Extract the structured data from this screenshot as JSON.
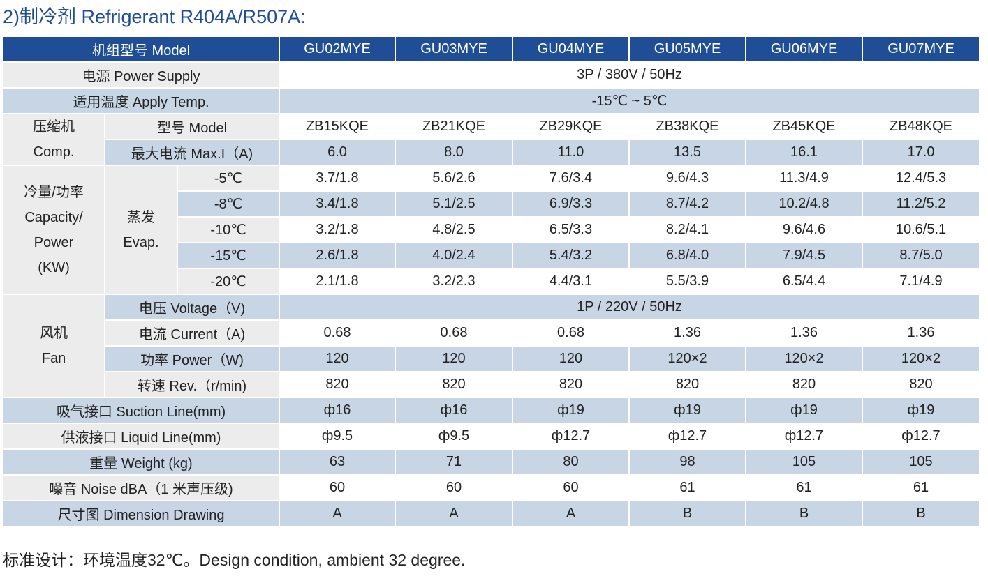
{
  "title": "2)制冷剂 Refrigerant R404A/R507A:",
  "header": {
    "model_label": "机组型号 Model",
    "models": [
      "GU02MYE",
      "GU03MYE",
      "GU04MYE",
      "GU05MYE",
      "GU06MYE",
      "GU07MYE"
    ]
  },
  "power_supply": {
    "label": "电源 Power Supply",
    "value": "3P / 380V / 50Hz"
  },
  "apply_temp": {
    "label": "适用温度 Apply Temp.",
    "value": "-15℃ ~ 5℃"
  },
  "compressor": {
    "group_label": [
      "压缩机",
      "Comp."
    ],
    "model_row": {
      "label": "型号 Model",
      "values": [
        "ZB15KQE",
        "ZB21KQE",
        "ZB29KQE",
        "ZB38KQE",
        "ZB45KQE",
        "ZB48KQE"
      ]
    },
    "max_current_row": {
      "label": "最大电流 Max.I（A)",
      "values": [
        "6.0",
        "8.0",
        "11.0",
        "13.5",
        "16.1",
        "17.0"
      ]
    }
  },
  "capacity": {
    "group_label": [
      "冷量/功率",
      "Capacity/",
      "Power",
      "(KW)"
    ],
    "evap_label": [
      "蒸发",
      "Evap."
    ],
    "rows": [
      {
        "temp": "-5℃",
        "values": [
          "3.7/1.8",
          "5.6/2.6",
          "7.6/3.4",
          "9.6/4.3",
          "11.3/4.9",
          "12.4/5.3"
        ]
      },
      {
        "temp": "-8℃",
        "values": [
          "3.4/1.8",
          "5.1/2.5",
          "6.9/3.3",
          "8.7/4.2",
          "10.2/4.8",
          "11.2/5.2"
        ]
      },
      {
        "temp": "-10℃",
        "values": [
          "3.2/1.8",
          "4.8/2.5",
          "6.5/3.3",
          "8.2/4.1",
          "9.6/4.6",
          "10.6/5.1"
        ]
      },
      {
        "temp": "-15℃",
        "values": [
          "2.6/1.8",
          "4.0/2.4",
          "5.4/3.2",
          "6.8/4.0",
          "7.9/4.5",
          "8.7/5.0"
        ]
      },
      {
        "temp": "-20℃",
        "values": [
          "2.1/1.8",
          "3.2/2.3",
          "4.4/3.1",
          "5.5/3.9",
          "6.5/4.4",
          "7.1/4.9"
        ]
      }
    ]
  },
  "fan": {
    "group_label": [
      "风机",
      "Fan"
    ],
    "voltage": {
      "label": "电压 Voltage（V)",
      "value": "1P / 220V / 50Hz"
    },
    "current": {
      "label": "电流 Current（A)",
      "values": [
        "0.68",
        "0.68",
        "0.68",
        "1.36",
        "1.36",
        "1.36"
      ]
    },
    "power": {
      "label": "功率 Power（W)",
      "values": [
        "120",
        "120",
        "120",
        "120×2",
        "120×2",
        "120×2"
      ]
    },
    "rev": {
      "label": "转速 Rev.（r/min)",
      "values": [
        "820",
        "820",
        "820",
        "820",
        "820",
        "820"
      ]
    }
  },
  "suction": {
    "label": "吸气接口 Suction Line(mm)",
    "values": [
      "ф16",
      "ф16",
      "ф19",
      "ф19",
      "ф19",
      "ф19"
    ]
  },
  "liquid": {
    "label": "供液接口 Liquid Line(mm)",
    "values": [
      "ф9.5",
      "ф9.5",
      "ф12.7",
      "ф12.7",
      "ф12.7",
      "ф12.7"
    ]
  },
  "weight": {
    "label": "重量 Weight (kg)",
    "values": [
      "63",
      "71",
      "80",
      "98",
      "105",
      "105"
    ]
  },
  "noise": {
    "label": "噪音 Noise dBA（1 米声压级)",
    "values": [
      "60",
      "60",
      "60",
      "61",
      "61",
      "61"
    ]
  },
  "dimension": {
    "label": "尺寸图 Dimension Drawing",
    "values": [
      "A",
      "A",
      "A",
      "B",
      "B",
      "B"
    ]
  },
  "note": "标准设计：环境温度32℃。Design condition, ambient 32 degree.",
  "colors": {
    "title": "#1f4e97",
    "header_bg": "#1f4e97",
    "header_text": "#ffffff",
    "stripe": "#c7d5e4",
    "label_bg": "#ececec",
    "border": "#ffffff"
  }
}
